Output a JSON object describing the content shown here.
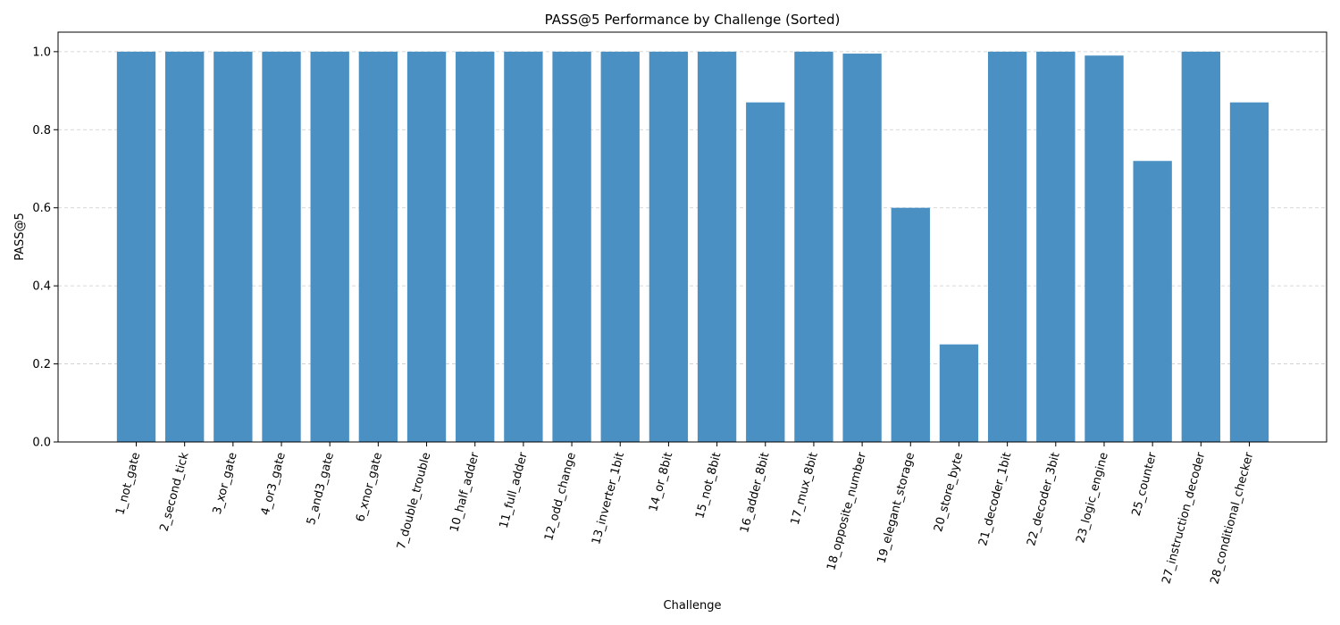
{
  "chart_data": {
    "type": "bar",
    "title": "PASS@5 Performance by Challenge (Sorted)",
    "xlabel": "Challenge",
    "ylabel": "PASS@5",
    "ylim": [
      0,
      1.05
    ],
    "yticks": [
      0.0,
      0.2,
      0.4,
      0.6,
      0.8,
      1.0
    ],
    "ytick_labels": [
      "0.0",
      "0.2",
      "0.4",
      "0.6",
      "0.8",
      "1.0"
    ],
    "grid": "y-dashed",
    "bar_color": "#4a90c2",
    "categories": [
      "1_not_gate",
      "2_second_tick",
      "3_xor_gate",
      "4_or3_gate",
      "5_and3_gate",
      "6_xnor_gate",
      "7_double_trouble",
      "10_half_adder",
      "11_full_adder",
      "12_odd_change",
      "13_inverter_1bit",
      "14_or_8bit",
      "15_not_8bit",
      "16_adder_8bit",
      "17_mux_8bit",
      "18_opposite_number",
      "19_elegant_storage",
      "20_store_byte",
      "21_decoder_1bit",
      "22_decoder_3bit",
      "23_logic_engine",
      "25_counter",
      "27_instruction_decoder",
      "28_conditional_checker"
    ],
    "values": [
      1.0,
      1.0,
      1.0,
      1.0,
      1.0,
      1.0,
      1.0,
      1.0,
      1.0,
      1.0,
      1.0,
      1.0,
      1.0,
      0.87,
      1.0,
      0.995,
      0.6,
      0.25,
      1.0,
      1.0,
      0.99,
      0.72,
      1.0,
      0.87
    ]
  }
}
